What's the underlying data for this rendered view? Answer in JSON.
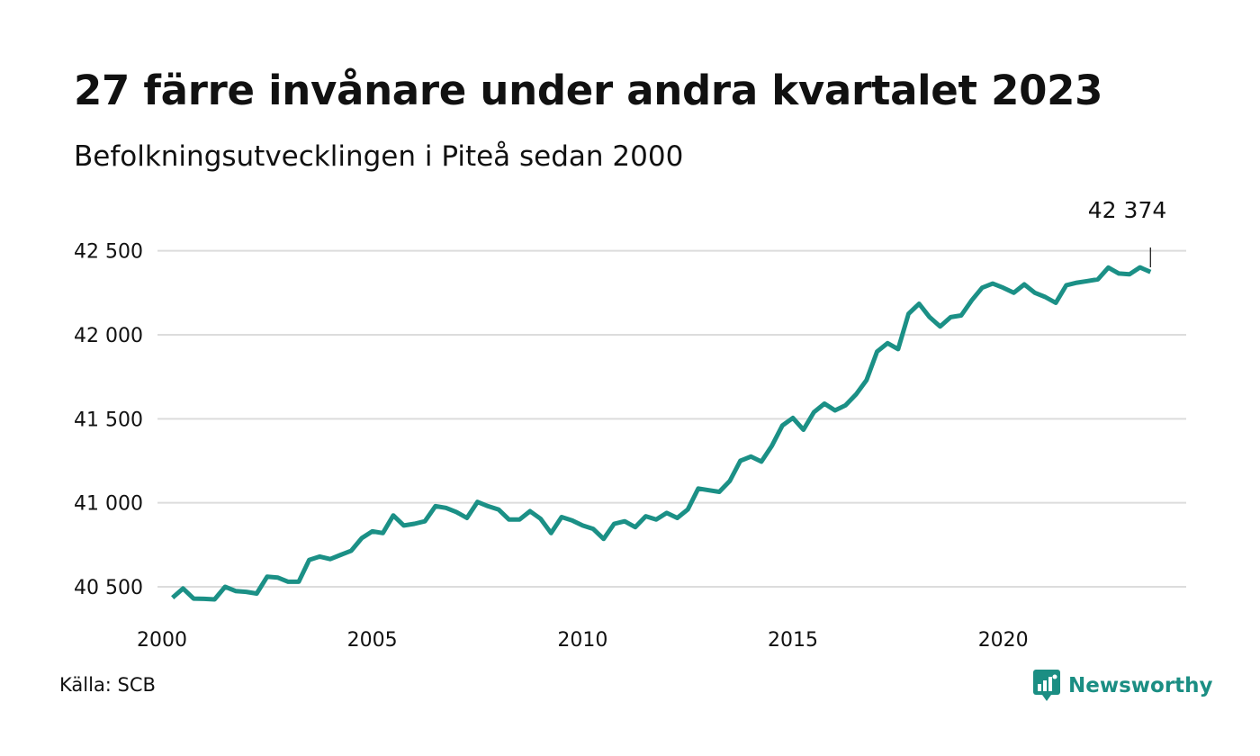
{
  "header": {
    "title": "27 färre invånare under andra kvartalet 2023",
    "subtitle": "Befolkningsutvecklingen i Piteå sedan 2000"
  },
  "footer": {
    "source": "Källa: SCB",
    "brand": "Newsworthy",
    "brand_icon": "newsworthy-logo-icon",
    "brand_color": "#1b8e83"
  },
  "chart_data": {
    "type": "line",
    "title": "27 färre invånare under andra kvartalet 2023",
    "subtitle": "Befolkningsutvecklingen i Piteå sedan 2000",
    "xlabel": "",
    "ylabel": "",
    "xlim": [
      2000,
      2024.35
    ],
    "ylim": [
      40350,
      42600
    ],
    "grid": true,
    "line_color": "#1b9086",
    "x_ticks": [
      2000,
      2005,
      2010,
      2015,
      2020
    ],
    "x_tick_labels": [
      "2000",
      "2005",
      "2010",
      "2015",
      "2020"
    ],
    "y_ticks": [
      40500,
      41000,
      41500,
      42000,
      42500
    ],
    "y_tick_labels": [
      "40 500",
      "41 000",
      "41 500",
      "42 000",
      "42 500"
    ],
    "annotation": {
      "x": 2023.5,
      "y": 42374,
      "label": "42 374"
    },
    "series": [
      {
        "x": [
          2000.25,
          2000.5,
          2000.75,
          2001.0,
          2001.25,
          2001.5,
          2001.75,
          2002.0,
          2002.25,
          2002.5,
          2002.75,
          2003.0,
          2003.25,
          2003.5,
          2003.75,
          2004.0,
          2004.25,
          2004.5,
          2004.75,
          2005.0,
          2005.25,
          2005.5,
          2005.75,
          2006.0,
          2006.25,
          2006.5,
          2006.75,
          2007.0,
          2007.25,
          2007.5,
          2007.75,
          2008.0,
          2008.25,
          2008.5,
          2008.75,
          2009.0,
          2009.25,
          2009.5,
          2009.75,
          2010.0,
          2010.25,
          2010.5,
          2010.75,
          2011.0,
          2011.25,
          2011.5,
          2011.75,
          2012.0,
          2012.25,
          2012.5,
          2012.75,
          2013.0,
          2013.25,
          2013.5,
          2013.75,
          2014.0,
          2014.25,
          2014.5,
          2014.75,
          2015.0,
          2015.25,
          2015.5,
          2015.75,
          2016.0,
          2016.25,
          2016.5,
          2016.75,
          2017.0,
          2017.25,
          2017.5,
          2017.75,
          2018.0,
          2018.25,
          2018.5,
          2018.75,
          2019.0,
          2019.25,
          2019.5,
          2019.75,
          2020.0,
          2020.25,
          2020.5,
          2020.75,
          2021.0,
          2021.25,
          2021.5,
          2021.75,
          2022.0,
          2022.25,
          2022.5,
          2022.75,
          2023.0,
          2023.25,
          2023.5
        ],
        "values": [
          40435,
          40490,
          40430,
          40428,
          40425,
          40500,
          40475,
          40470,
          40460,
          40560,
          40555,
          40530,
          40530,
          40660,
          40680,
          40665,
          40690,
          40715,
          40790,
          40830,
          40820,
          40925,
          40865,
          40875,
          40890,
          40980,
          40970,
          40945,
          40910,
          41005,
          40980,
          40960,
          40900,
          40900,
          40950,
          40905,
          40820,
          40915,
          40895,
          40865,
          40845,
          40785,
          40875,
          40890,
          40855,
          40920,
          40900,
          40940,
          40910,
          40960,
          41085,
          41075,
          41065,
          41130,
          41250,
          41275,
          41245,
          41340,
          41460,
          41505,
          41435,
          41540,
          41590,
          41550,
          41580,
          41645,
          41730,
          41900,
          41950,
          41915,
          42125,
          42185,
          42105,
          42050,
          42105,
          42115,
          42205,
          42280,
          42305,
          42280,
          42250,
          42300,
          42250,
          42225,
          42190,
          42295,
          42310,
          42320,
          42330,
          42400,
          42365,
          42360,
          42401,
          42374
        ]
      }
    ]
  }
}
